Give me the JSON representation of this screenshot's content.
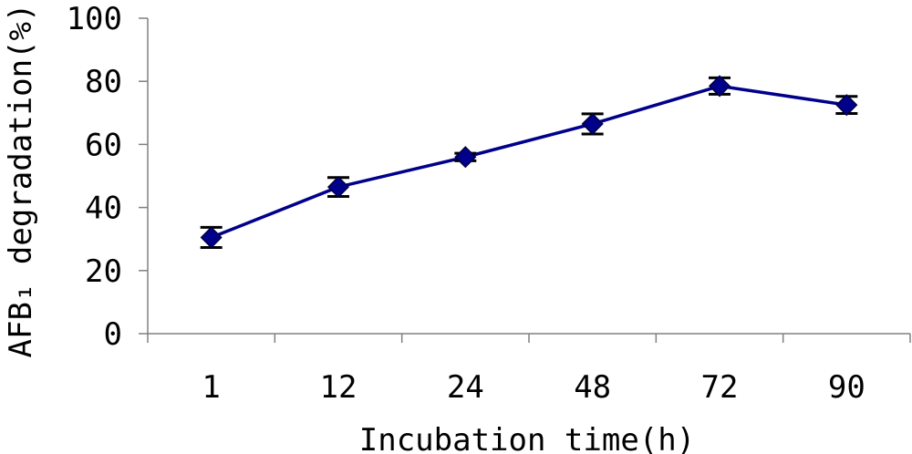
{
  "chart_data": {
    "type": "line",
    "title": "",
    "xlabel": "Incubation time(h)",
    "ylabel": "AFB₁ degradation(%)",
    "categories": [
      "1",
      "12",
      "24",
      "48",
      "72",
      "90"
    ],
    "ylim": [
      0,
      100
    ],
    "yticks": [
      "0",
      "20",
      "40",
      "60",
      "80",
      "100"
    ],
    "grid": false,
    "legend": "none",
    "series": [
      {
        "values": [
          30.5,
          46.5,
          56,
          66.5,
          78.5,
          72.5
        ],
        "errors": [
          3.2,
          3.0,
          1.2,
          3.2,
          2.6,
          2.7
        ],
        "color": "#00008B"
      }
    ],
    "colors": {
      "line": "#00008B",
      "marker": "#00008B",
      "errorbar": "#000000",
      "axis": "#808080"
    }
  }
}
